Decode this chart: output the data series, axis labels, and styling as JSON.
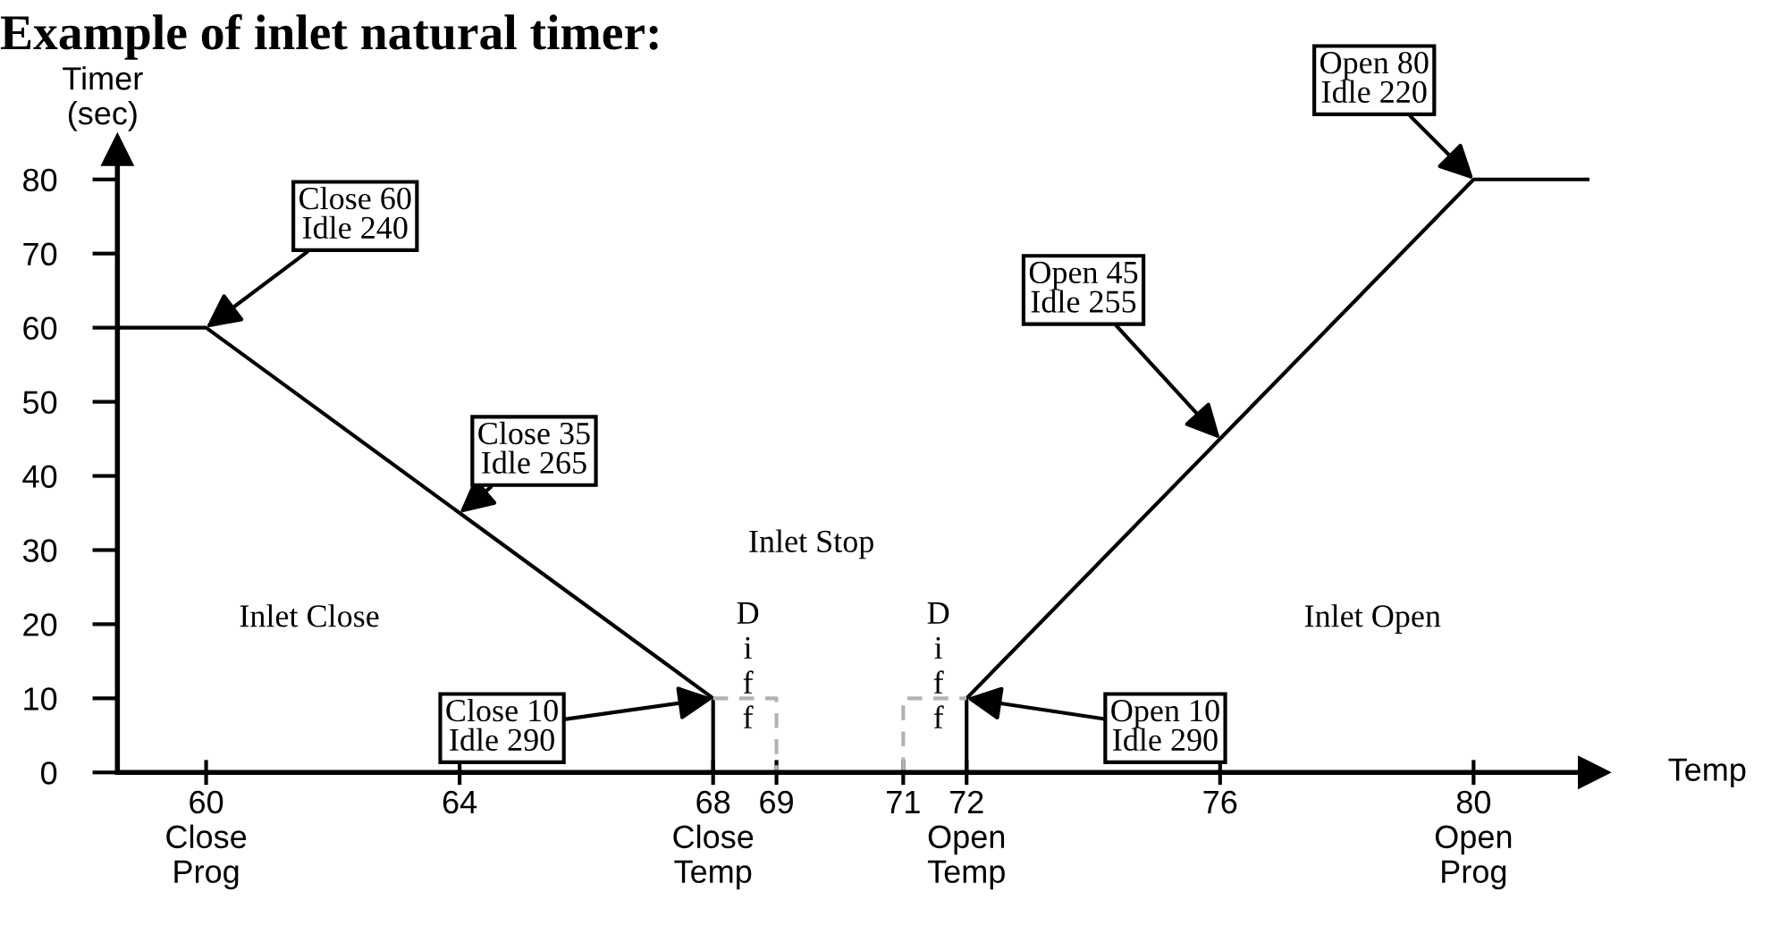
{
  "chart_data": {
    "type": "line",
    "title": "Example of inlet natural timer:",
    "xlabel": "Temp",
    "ylabel": "Timer\n(sec)",
    "series": [
      {
        "color": "#000000",
        "x": [
          58.6,
          60,
          64,
          68,
          68
        ],
        "values": [
          60,
          60,
          35,
          10,
          0
        ]
      },
      {
        "color": "#000000",
        "x": [
          72,
          72,
          76,
          80,
          81.8
        ],
        "values": [
          0,
          10,
          45,
          80,
          80
        ]
      },
      {
        "color": "#b3b3b3",
        "line_style": "dashed",
        "x": [
          68,
          69,
          69
        ],
        "values": [
          10,
          10,
          0
        ]
      },
      {
        "color": "#b3b3b3",
        "line_style": "dashed",
        "x": [
          71,
          71,
          72
        ],
        "values": [
          0,
          10,
          10
        ]
      }
    ],
    "xlim": [
      58.6,
      81.9
    ],
    "ylim": [
      0,
      84
    ],
    "xticks": [
      {
        "value": 60,
        "label": "60\nClose\nProg"
      },
      64,
      {
        "value": 68,
        "label": "68\nClose\nTemp"
      },
      69,
      71,
      {
        "value": 72,
        "label": "72\nOpen\nTemp"
      },
      76,
      {
        "value": 80,
        "label": "80\nOpen\nProg"
      }
    ],
    "yticks": [
      0,
      10,
      20,
      30,
      40,
      50,
      60,
      70,
      80
    ],
    "annotations": [
      {
        "text": "Close 60\nIdle 240",
        "x": 60,
        "y": 60
      },
      {
        "text": "Close 35\nIdle 265",
        "x": 64,
        "y": 35
      },
      {
        "text": "Close 10\nIdle 290",
        "x": 68,
        "y": 10
      },
      {
        "text": "Open 10\nIdle 290",
        "x": 72,
        "y": 10
      },
      {
        "text": "Open 45\nIdle 255",
        "x": 76,
        "y": 45
      },
      {
        "text": "Open 80\nIdle 220",
        "x": 80,
        "y": 80
      },
      "Inlet Close",
      "Inlet Stop",
      "Inlet Open",
      "D\ni\nf\nf",
      "D\ni\nf\nf"
    ],
    "grid": false,
    "legend": false
  }
}
